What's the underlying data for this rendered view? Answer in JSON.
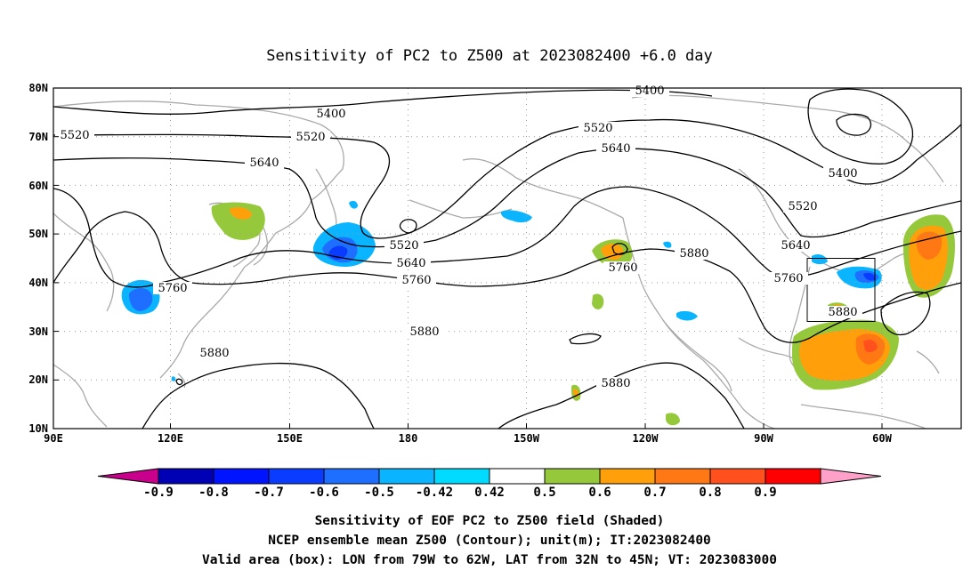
{
  "title": "Sensitivity of PC2 to Z500 at 2023082400 +6.0 day",
  "map": {
    "lon_ticks": [
      "90E",
      "120E",
      "150E",
      "180",
      "150W",
      "120W",
      "90W",
      "60W"
    ],
    "lat_ticks": [
      "80N",
      "70N",
      "60N",
      "50N",
      "40N",
      "30N",
      "20N",
      "10N"
    ],
    "contour_labels": [
      "5400",
      "5400",
      "5400",
      "5520",
      "5520",
      "5520",
      "5520",
      "5520",
      "5640",
      "5640",
      "5640",
      "5640",
      "5760",
      "5760",
      "5760",
      "5760",
      "5880",
      "5880",
      "5880",
      "5880",
      "5880"
    ],
    "valid_box": {
      "lon_range": [
        "79W",
        "62W"
      ],
      "lat_range": [
        "32N",
        "45N"
      ]
    },
    "coast_color": "#aaaaaa",
    "grid": "dotted"
  },
  "colorbar": {
    "labels": [
      "-0.9",
      "-0.8",
      "-0.7",
      "-0.6",
      "-0.5",
      "-0.42",
      "0.42",
      "0.5",
      "0.6",
      "0.7",
      "0.8",
      "0.9"
    ],
    "colors": [
      "#c8008c",
      "#0000b4",
      "#0014ff",
      "#0a3cff",
      "#1e6eff",
      "#0ab4ff",
      "#00dcff",
      "#ffffff",
      "#96c83c",
      "#ffa00a",
      "#ff7814",
      "#ff501e",
      "#ff0000",
      "#ffa0c8"
    ]
  },
  "caption": {
    "line1": "Sensitivity of EOF PC2 to Z500 field (Shaded)",
    "line2": "NCEP ensemble mean Z500 (Contour); unit(m); IT:2023082400",
    "line3": "Valid area (box): LON from 79W to 62W, LAT from 32N to 45N; VT: 2023083000"
  }
}
